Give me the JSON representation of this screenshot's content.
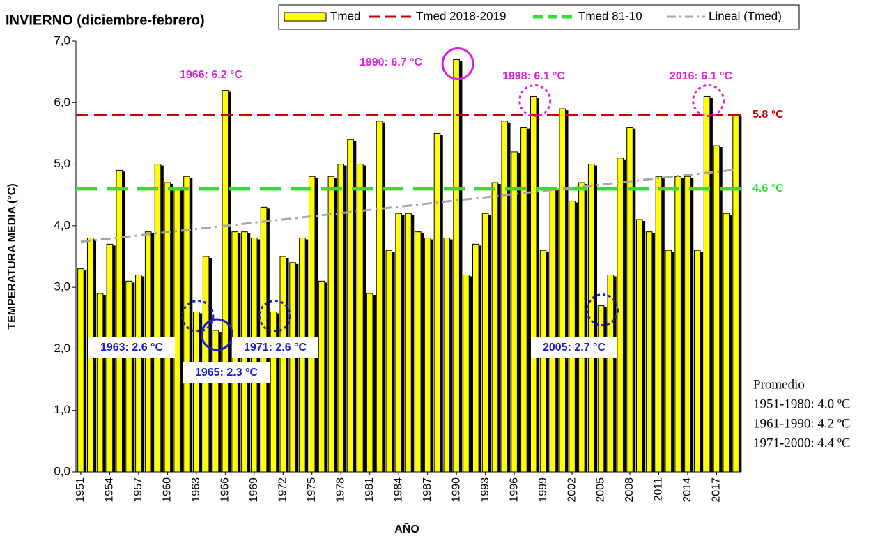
{
  "chart_data": {
    "type": "bar",
    "title": "INVIERNO (diciembre-febrero)",
    "y_label": "TEMPERATURA MEDIA (°C)",
    "x_label": "AÑO",
    "x": [
      1951,
      1952,
      1953,
      1954,
      1955,
      1956,
      1957,
      1958,
      1959,
      1960,
      1961,
      1962,
      1963,
      1964,
      1965,
      1966,
      1967,
      1968,
      1969,
      1970,
      1971,
      1972,
      1973,
      1974,
      1975,
      1976,
      1977,
      1978,
      1979,
      1980,
      1981,
      1982,
      1983,
      1984,
      1985,
      1986,
      1987,
      1988,
      1989,
      1990,
      1991,
      1992,
      1993,
      1994,
      1995,
      1996,
      1997,
      1998,
      1999,
      2000,
      2001,
      2002,
      2003,
      2004,
      2005,
      2006,
      2007,
      2008,
      2009,
      2010,
      2011,
      2012,
      2013,
      2014,
      2015,
      2016,
      2017,
      2018,
      2019
    ],
    "series": [
      {
        "name": "Tmed",
        "color": "#ffff00",
        "values": [
          3.3,
          3.8,
          2.9,
          3.7,
          4.9,
          3.1,
          3.2,
          3.9,
          5.0,
          4.7,
          4.6,
          4.8,
          2.6,
          3.5,
          2.3,
          6.2,
          3.9,
          3.9,
          3.8,
          4.3,
          2.6,
          3.5,
          3.4,
          3.8,
          4.8,
          3.1,
          4.8,
          5.0,
          5.4,
          5.0,
          2.9,
          5.7,
          3.6,
          4.2,
          4.2,
          3.9,
          3.8,
          5.5,
          3.8,
          6.7,
          3.2,
          3.7,
          4.2,
          4.7,
          5.7,
          5.2,
          5.6,
          6.1,
          3.6,
          4.6,
          5.9,
          4.4,
          4.7,
          5.0,
          2.7,
          3.2,
          5.1,
          5.6,
          4.1,
          3.9,
          4.8,
          3.6,
          4.8,
          4.8,
          3.6,
          6.1,
          5.3,
          4.2,
          5.8
        ]
      }
    ],
    "reference_lines": [
      {
        "name": "Tmed 2018-2019",
        "value": 5.8,
        "label": "5.8 °C",
        "color": "#cc0000"
      },
      {
        "name": "Tmed 81-10",
        "value": 4.6,
        "label": "4.6 °C",
        "color": "#33dd33"
      }
    ],
    "trend": {
      "name": "Lineal (Tmed)",
      "color": "#a6a6a6",
      "x": [
        1951,
        2019
      ],
      "values": [
        3.74,
        4.91
      ]
    },
    "annotations": [
      {
        "text": "1966: 6.2 °C",
        "x": 1966,
        "color": "#e020e0",
        "circle": "none"
      },
      {
        "text": "1990: 6.7 °C",
        "x": 1990,
        "color": "#e020e0",
        "circle": "solid"
      },
      {
        "text": "1998: 6.1 °C",
        "x": 1998,
        "color": "#e020e0",
        "circle": "dotted"
      },
      {
        "text": "2016: 6.1 °C",
        "x": 2016,
        "color": "#e020e0",
        "circle": "dotted"
      },
      {
        "text": "1963: 2.6 °C",
        "x": 1963,
        "color": "#1a1acc",
        "circle": "dotted"
      },
      {
        "text": "1965: 2.3 °C",
        "x": 1965,
        "color": "#1a1acc",
        "circle": "solid"
      },
      {
        "text": "1971: 2.6 °C",
        "x": 1971,
        "color": "#1a1acc",
        "circle": "dotted"
      },
      {
        "text": "2005: 2.7 °C",
        "x": 2005,
        "color": "#1a1acc",
        "circle": "dotted"
      }
    ],
    "notes": [
      "Promedio",
      "1951-1980: 4.0 ºC",
      "1961-1990: 4.2 ºC",
      "1971-2000: 4.4 ºC"
    ],
    "xlim": [
      1950.5,
      2019.5
    ],
    "xticks": [
      1951,
      1954,
      1957,
      1960,
      1963,
      1966,
      1969,
      1972,
      1975,
      1978,
      1981,
      1984,
      1987,
      1990,
      1993,
      1996,
      1999,
      2002,
      2005,
      2008,
      2011,
      2014,
      2017
    ],
    "ylim": [
      0,
      7
    ],
    "yticks": [
      {
        "value": 0,
        "label": "0,0"
      },
      {
        "value": 1,
        "label": "1,0"
      },
      {
        "value": 2,
        "label": "2,0"
      },
      {
        "value": 3,
        "label": "3,0"
      },
      {
        "value": 4,
        "label": "4,0"
      },
      {
        "value": 5,
        "label": "5,0"
      },
      {
        "value": 6,
        "label": "6,0"
      },
      {
        "value": 7,
        "label": "7,0"
      }
    ],
    "grid": false
  }
}
